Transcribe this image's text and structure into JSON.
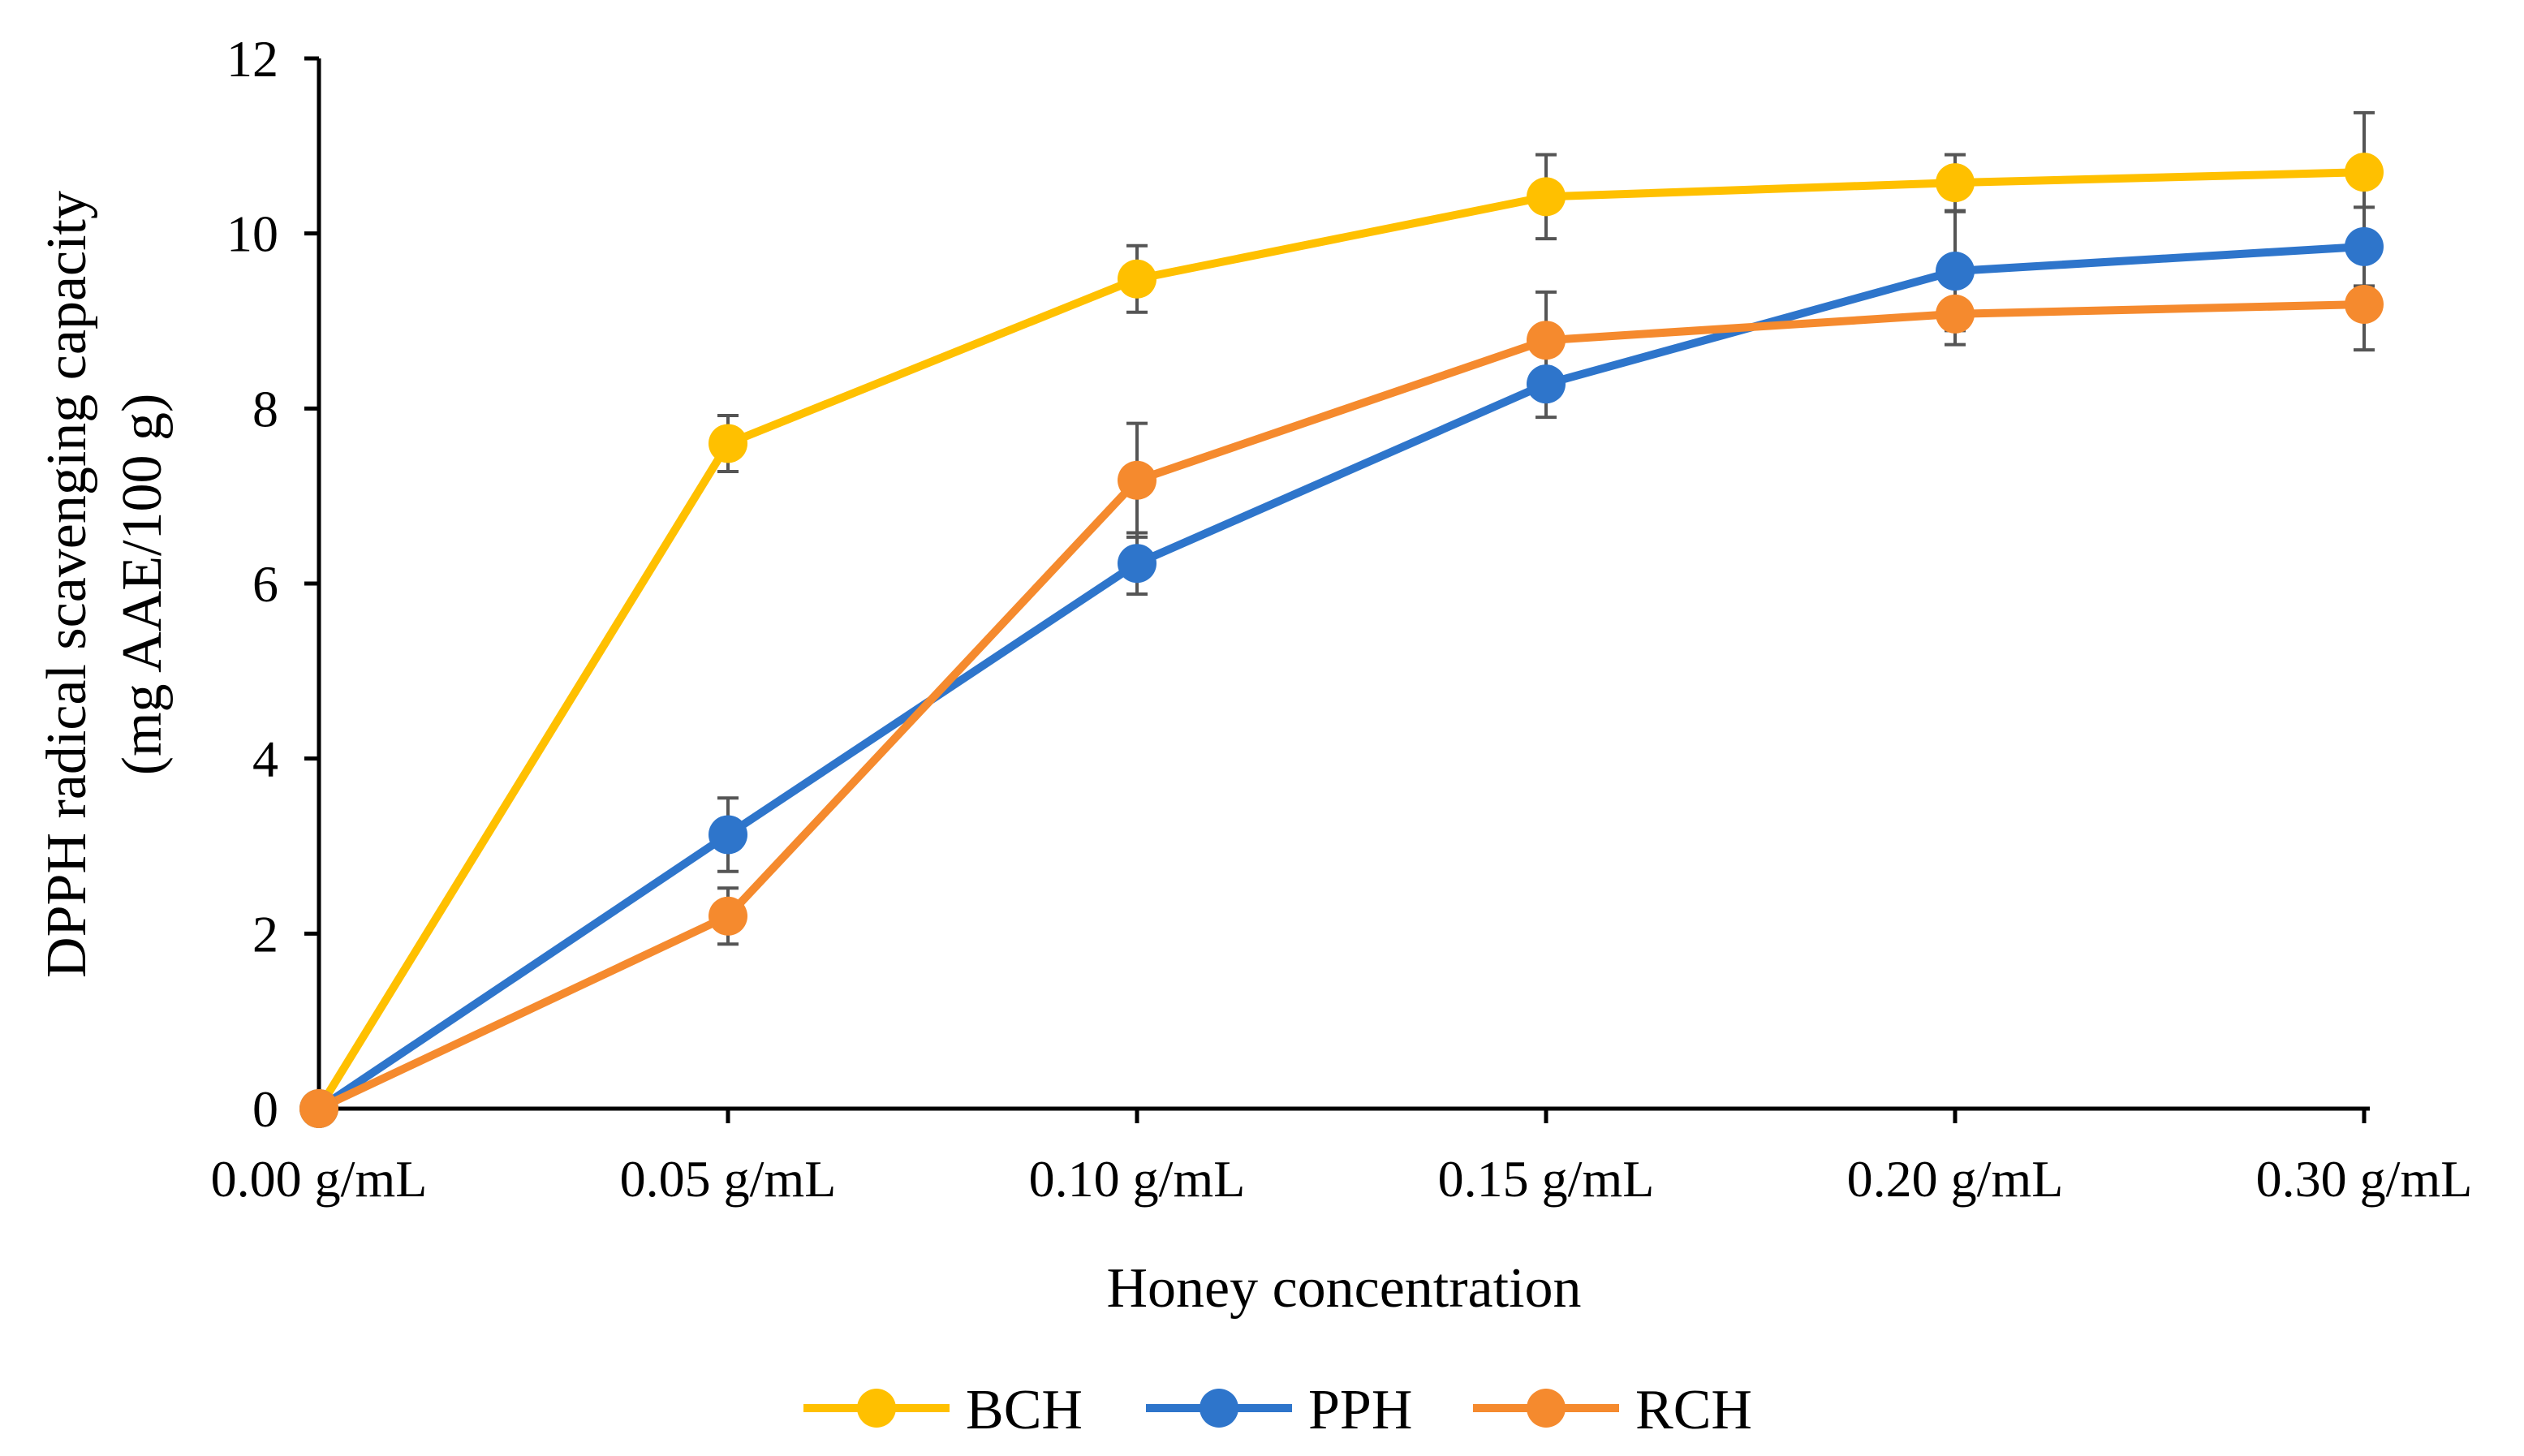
{
  "chart_data": {
    "type": "line",
    "title": "",
    "xlabel": "Honey concentration",
    "ylabel_line1": "DPPH radical scavenging capacity",
    "ylabel_line2": "(mg AAE/100 g)",
    "categories": [
      "0.00 g/mL",
      "0.05 g/mL",
      "0.10 g/mL",
      "0.15 g/mL",
      "0.20 g/mL",
      "0.30 g/mL"
    ],
    "ylim": [
      0,
      12
    ],
    "yticks": [
      0,
      2,
      4,
      6,
      8,
      10,
      12
    ],
    "grid": false,
    "legend_position": "bottom-center",
    "series": [
      {
        "name": "BCH",
        "color": "#FFC000",
        "values": [
          0,
          7.6,
          9.48,
          10.42,
          10.58,
          10.7
        ],
        "errors": [
          0,
          0.32,
          0.38,
          0.48,
          0.32,
          0.68
        ]
      },
      {
        "name": "PPH",
        "color": "#2E75CB",
        "values": [
          0,
          3.13,
          6.23,
          8.28,
          9.57,
          9.85
        ],
        "errors": [
          0,
          0.42,
          0.35,
          0.38,
          0.68,
          0.45
        ]
      },
      {
        "name": "RCH",
        "color": "#F58A2E",
        "values": [
          0,
          2.2,
          7.18,
          8.78,
          9.08,
          9.19
        ],
        "errors": [
          0,
          0.32,
          0.65,
          0.55,
          0.35,
          0.52
        ]
      }
    ]
  }
}
